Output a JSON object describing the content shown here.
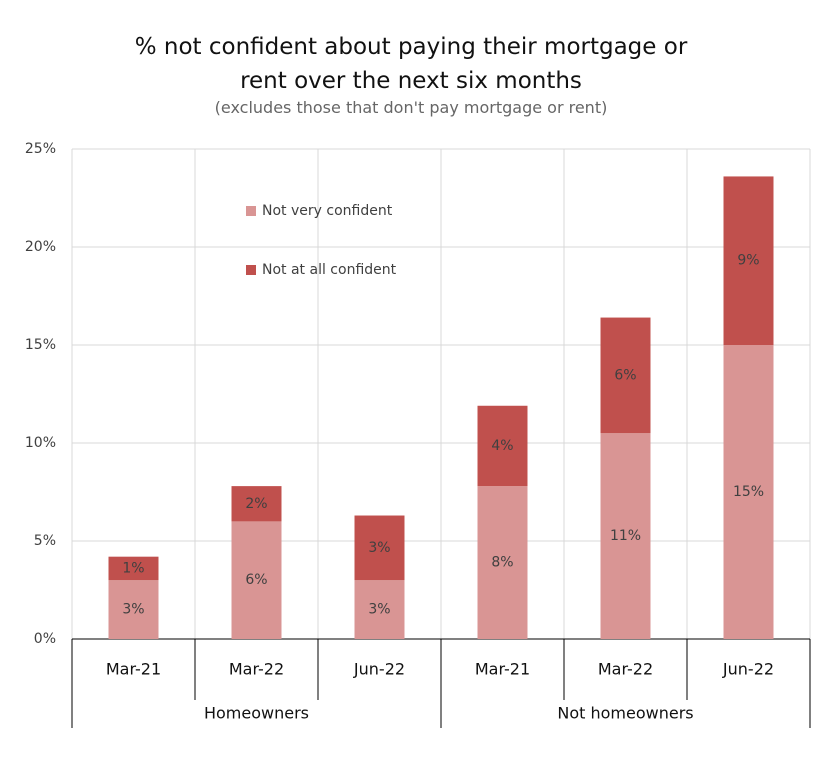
{
  "chart_data": {
    "type": "stacked_bar",
    "title": "% not confident about paying their mortgage or rent over the next six months",
    "subtitle": "(excludes those that don't pay mortgage or rent)",
    "groups": [
      {
        "name": "Homeowners",
        "categories": [
          "Mar-21",
          "Mar-22",
          "Jun-22"
        ]
      },
      {
        "name": "Not homeowners",
        "categories": [
          "Mar-21",
          "Mar-22",
          "Jun-22"
        ]
      }
    ],
    "series": [
      {
        "name": "Not very confident",
        "color": "#d99594",
        "values": [
          3.0,
          6.0,
          3.0,
          7.8,
          10.5,
          15.0
        ],
        "value_labels": [
          "3%",
          "6%",
          "3%",
          "8%",
          "11%",
          "15%"
        ]
      },
      {
        "name": "Not at all confident",
        "color": "#c0504d",
        "values": [
          1.2,
          1.8,
          3.3,
          4.1,
          5.9,
          8.6
        ],
        "value_labels": [
          "1%",
          "2%",
          "3%",
          "4%",
          "6%",
          "9%"
        ]
      }
    ],
    "ylim": [
      0,
      25
    ],
    "yticks": [
      {
        "value": 0,
        "label": "0%"
      },
      {
        "value": 5,
        "label": "5%"
      },
      {
        "value": 10,
        "label": "10%"
      },
      {
        "value": 15,
        "label": "15%"
      },
      {
        "value": 20,
        "label": "20%"
      },
      {
        "value": 25,
        "label": "25%"
      }
    ],
    "grid": true
  }
}
